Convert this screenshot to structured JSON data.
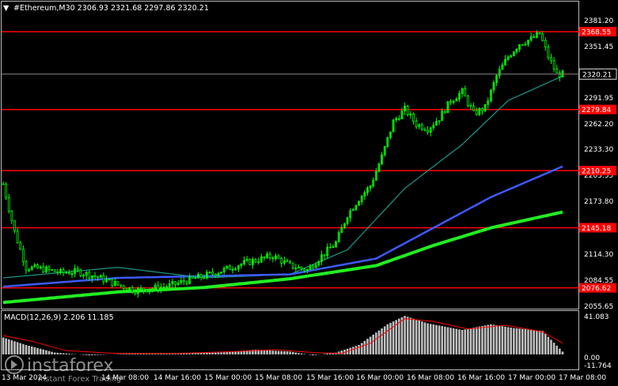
{
  "header": {
    "arrow": "▼",
    "title": "#Ethereum,M30  2306.93 2321.68 2297.86 2320.21"
  },
  "colors": {
    "background": "#000000",
    "candle": "#00ff00",
    "level": "#ff0000",
    "ma_fast": "#1a9a8a",
    "ma_mid": "#3b5bff",
    "ma_slow": "#22ee22",
    "macd_hist": "#c0c0c0",
    "macd_signal": "#ff0000"
  },
  "price_axis": {
    "ticks": [
      "2381.20",
      "2351.45",
      "2291.95",
      "2262.20",
      "2233.30",
      "2203.55",
      "2173.80",
      "2114.30",
      "2084.55",
      "2055.65"
    ],
    "current_price": "2320.21"
  },
  "levels": [
    {
      "price": 2368.55,
      "label": "2368.55"
    },
    {
      "price": 2279.84,
      "label": "2279.84"
    },
    {
      "price": 2210.25,
      "label": "2210.25"
    },
    {
      "price": 2145.18,
      "label": "2145.18"
    },
    {
      "price": 2076.62,
      "label": "2076.62"
    }
  ],
  "indicator": {
    "title": "MACD(12,26,9) 2.206 11.185",
    "axis_top": "41.083",
    "axis_zero": "0.00",
    "axis_bottom": "-11.764"
  },
  "time_axis": {
    "labels": [
      "13 Mar 2024",
      "14 Mar 08:00",
      "14 Mar 16:00",
      "15 Mar 00:00",
      "15 Mar 08:00",
      "15 Mar 16:00",
      "16 Mar 00:00",
      "16 Mar 08:00",
      "16 Mar 16:00",
      "17 Mar 00:00",
      "17 Mar 08:00"
    ]
  },
  "watermark": {
    "brand": "instaforex",
    "tagline": "Instant Forex Trading"
  },
  "chart_data": {
    "type": "candlestick",
    "symbol": "#Ethereum",
    "timeframe": "M30",
    "ylim": [
      2050,
      2392
    ],
    "key_closes": [
      [
        0,
        2195
      ],
      [
        4,
        2140
      ],
      [
        8,
        2100
      ],
      [
        14,
        2098
      ],
      [
        20,
        2094
      ],
      [
        26,
        2095
      ],
      [
        32,
        2090
      ],
      [
        40,
        2080
      ],
      [
        46,
        2074
      ],
      [
        52,
        2076
      ],
      [
        58,
        2079
      ],
      [
        64,
        2085
      ],
      [
        70,
        2090
      ],
      [
        76,
        2096
      ],
      [
        82,
        2103
      ],
      [
        88,
        2108
      ],
      [
        94,
        2113
      ],
      [
        100,
        2102
      ],
      [
        106,
        2097
      ],
      [
        110,
        2110
      ],
      [
        116,
        2128
      ],
      [
        120,
        2160
      ],
      [
        124,
        2178
      ],
      [
        128,
        2193
      ],
      [
        132,
        2226
      ],
      [
        136,
        2266
      ],
      [
        140,
        2280
      ],
      [
        144,
        2263
      ],
      [
        148,
        2258
      ],
      [
        152,
        2270
      ],
      [
        156,
        2290
      ],
      [
        160,
        2300
      ],
      [
        164,
        2275
      ],
      [
        168,
        2282
      ],
      [
        172,
        2318
      ],
      [
        176,
        2340
      ],
      [
        180,
        2355
      ],
      [
        184,
        2360
      ],
      [
        187,
        2366
      ],
      [
        190,
        2340
      ],
      [
        193,
        2320
      ],
      [
        195,
        2320
      ]
    ],
    "moving_averages": [
      {
        "points": [
          [
            0,
            2088
          ],
          [
            40,
            2100
          ],
          [
            70,
            2088
          ],
          [
            100,
            2092
          ],
          [
            120,
            2120
          ],
          [
            140,
            2190
          ],
          [
            160,
            2240
          ],
          [
            176,
            2290
          ],
          [
            195,
            2318
          ]
        ]
      },
      {
        "points": [
          [
            0,
            2078
          ],
          [
            40,
            2088
          ],
          [
            70,
            2090
          ],
          [
            100,
            2092
          ],
          [
            130,
            2110
          ],
          [
            150,
            2145
          ],
          [
            170,
            2180
          ],
          [
            195,
            2215
          ]
        ]
      },
      {
        "points": [
          [
            0,
            2060
          ],
          [
            40,
            2072
          ],
          [
            70,
            2077
          ],
          [
            100,
            2087
          ],
          [
            130,
            2102
          ],
          [
            150,
            2125
          ],
          [
            170,
            2145
          ],
          [
            195,
            2163
          ]
        ]
      }
    ],
    "macd": {
      "ylim": [
        -11.764,
        41.083
      ],
      "hist_points": [
        [
          0,
          18
        ],
        [
          8,
          10
        ],
        [
          18,
          2
        ],
        [
          30,
          -1
        ],
        [
          45,
          1
        ],
        [
          60,
          1
        ],
        [
          75,
          2
        ],
        [
          88,
          5
        ],
        [
          100,
          3
        ],
        [
          108,
          -1
        ],
        [
          116,
          2
        ],
        [
          124,
          10
        ],
        [
          134,
          32
        ],
        [
          140,
          41
        ],
        [
          148,
          33
        ],
        [
          160,
          26
        ],
        [
          170,
          32
        ],
        [
          178,
          28
        ],
        [
          188,
          25
        ],
        [
          195,
          3
        ]
      ],
      "signal_points": [
        [
          0,
          20
        ],
        [
          10,
          14
        ],
        [
          22,
          4
        ],
        [
          40,
          1
        ],
        [
          60,
          1
        ],
        [
          80,
          3
        ],
        [
          95,
          5
        ],
        [
          108,
          2
        ],
        [
          118,
          1
        ],
        [
          128,
          12
        ],
        [
          140,
          38
        ],
        [
          150,
          35
        ],
        [
          162,
          27
        ],
        [
          175,
          31
        ],
        [
          188,
          24
        ],
        [
          195,
          12
        ]
      ]
    }
  }
}
